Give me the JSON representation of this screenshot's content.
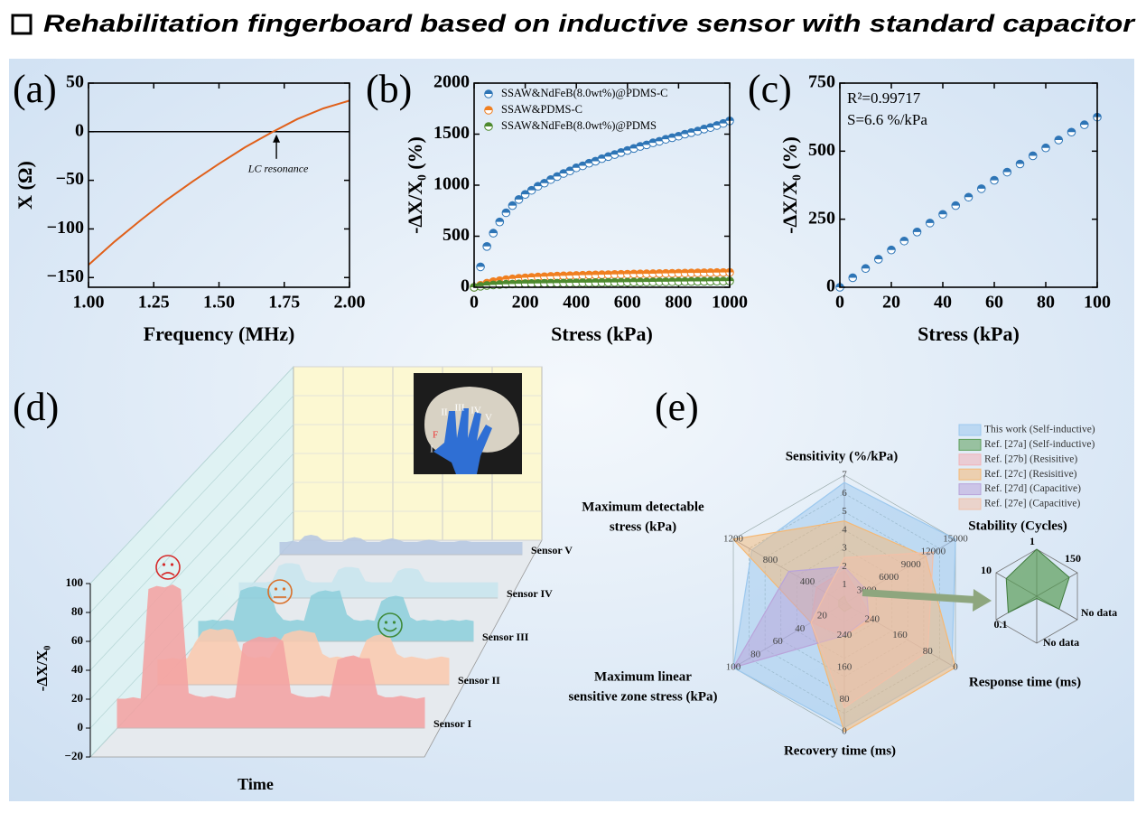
{
  "header": {
    "title": "Rehabilitation fingerboard based on inductive sensor with standard capacitor"
  },
  "chart_data": [
    {
      "type": "line",
      "panel": "(a)",
      "xlabel": "Frequency (MHz)",
      "ylabel": "X (Ω)",
      "x": [
        1.0,
        1.1,
        1.2,
        1.3,
        1.4,
        1.5,
        1.6,
        1.7,
        1.8,
        1.9,
        2.0
      ],
      "series": [
        {
          "color": "#e0601a",
          "values": [
            -137,
            -113,
            -91,
            -70,
            -51,
            -33,
            -16,
            -1,
            13,
            24,
            32
          ]
        }
      ],
      "xlim": [
        1,
        2
      ],
      "ylim": [
        -160,
        50
      ],
      "xticks": [
        {
          "value": 1,
          "label": "1.00"
        },
        {
          "value": 1.25,
          "label": "1.25"
        },
        {
          "value": 1.5,
          "label": "1.50"
        },
        {
          "value": 1.75,
          "label": "1.75"
        },
        {
          "value": 2,
          "label": "2.00"
        }
      ],
      "yticks": [
        {
          "value": -150,
          "label": "−150"
        },
        {
          "value": -100,
          "label": "−100"
        },
        {
          "value": -50,
          "label": "−50"
        },
        0,
        50
      ],
      "hline": 0,
      "annotation": {
        "text": "LC resonance",
        "x": 1.72
      }
    },
    {
      "type": "scatter",
      "panel": "(b)",
      "xlabel": "Stress (kPa)",
      "ylabel": "-ΔX/X₀ (%)",
      "x": [
        0,
        25,
        50,
        75,
        100,
        125,
        150,
        175,
        200,
        225,
        250,
        275,
        300,
        325,
        350,
        375,
        400,
        425,
        450,
        475,
        500,
        525,
        550,
        575,
        600,
        625,
        650,
        675,
        700,
        725,
        750,
        775,
        800,
        825,
        850,
        875,
        900,
        925,
        950,
        975,
        1000
      ],
      "series": [
        {
          "name": "SSAW&NdFeB(8.0wt%)@PDMS-C",
          "color": "#2e75b6",
          "values": [
            0,
            200,
            400,
            530,
            640,
            730,
            800,
            860,
            910,
            950,
            990,
            1020,
            1055,
            1085,
            1115,
            1140,
            1170,
            1190,
            1215,
            1235,
            1260,
            1280,
            1300,
            1320,
            1340,
            1360,
            1380,
            1395,
            1415,
            1430,
            1450,
            1465,
            1480,
            1500,
            1515,
            1530,
            1550,
            1565,
            1585,
            1605,
            1630
          ]
        },
        {
          "name": "SSAW&PDMS-C",
          "color": "#f07f20",
          "values": [
            0,
            20,
            40,
            55,
            65,
            75,
            82,
            88,
            93,
            97,
            101,
            104,
            107,
            110,
            112,
            114,
            116,
            118,
            120,
            121,
            123,
            124,
            126,
            127,
            128,
            130,
            131,
            132,
            133,
            135,
            136,
            137,
            138,
            139,
            140,
            141,
            142,
            143,
            144,
            145,
            146
          ]
        },
        {
          "name": "SSAW&NdFeB(8.0wt%)@PDMS",
          "color": "#4e8a2e",
          "values": [
            0,
            10,
            18,
            23,
            27,
            30,
            32,
            34,
            36,
            37,
            38,
            39,
            40,
            41,
            42,
            43,
            44,
            45,
            45,
            46,
            47,
            48,
            48,
            49,
            50,
            51,
            51,
            52,
            53,
            54,
            54,
            55,
            56,
            56,
            57,
            58,
            58,
            59,
            60,
            60,
            61
          ]
        }
      ],
      "xlim": [
        0,
        1000
      ],
      "ylim": [
        0,
        2000
      ],
      "xticks": [
        0,
        200,
        400,
        600,
        800,
        1000
      ],
      "yticks": [
        0,
        500,
        1000,
        1500,
        2000
      ]
    },
    {
      "type": "scatter",
      "panel": "(c)",
      "xlabel": "Stress (kPa)",
      "ylabel": "-ΔX/X₀ (%)",
      "x": [
        0,
        5,
        10,
        15,
        20,
        25,
        30,
        35,
        40,
        45,
        50,
        55,
        60,
        65,
        70,
        75,
        80,
        85,
        90,
        95,
        100
      ],
      "series": [
        {
          "color": "#2e75b6",
          "values": [
            0,
            35,
            69,
            103,
            137,
            170,
            203,
            236,
            268,
            300,
            331,
            362,
            393,
            423,
            453,
            483,
            512,
            541,
            570,
            597,
            625
          ]
        }
      ],
      "xlim": [
        0,
        100
      ],
      "ylim": [
        0,
        750
      ],
      "xticks": [
        0,
        20,
        40,
        60,
        80,
        100
      ],
      "yticks": [
        0,
        250,
        500,
        750
      ],
      "annotations": [
        "R²=0.99717",
        "S=6.6 %/kPa"
      ]
    },
    {
      "type": "waterfall3d",
      "panel": "(d)",
      "xlabel": "Time",
      "ylabel": "-ΔX/X₀",
      "ylim": [
        -20,
        100
      ],
      "yticks": [
        {
          "value": -20,
          "label": "−20"
        },
        0,
        20,
        40,
        60,
        80,
        100
      ],
      "series": [
        {
          "name": "Sensor I",
          "color": "#f4a3a3",
          "values": [
            20,
            20,
            21,
            20,
            96,
            98,
            97,
            99,
            96,
            24,
            22,
            21,
            22,
            21,
            20,
            21,
            58,
            61,
            63,
            62,
            63,
            60,
            24,
            22,
            21,
            21,
            22,
            21,
            47,
            49,
            50,
            48,
            48,
            23,
            21,
            21,
            22,
            21,
            20,
            21
          ]
        },
        {
          "name": "Sensor II",
          "color": "#fbcbb0",
          "values": [
            18,
            18,
            19,
            18,
            19,
            30,
            38,
            40,
            39,
            40,
            39,
            25,
            20,
            19,
            20,
            19,
            28,
            36,
            38,
            39,
            38,
            37,
            22,
            19,
            20,
            19,
            20,
            19,
            32,
            35,
            36,
            35,
            22,
            19,
            20,
            19,
            18,
            19,
            20,
            19
          ]
        },
        {
          "name": "Sensor III",
          "color": "#8fd0dc",
          "values": [
            15,
            15,
            16,
            15,
            16,
            15,
            38,
            40,
            41,
            40,
            39,
            22,
            16,
            15,
            16,
            15,
            34,
            37,
            38,
            37,
            38,
            20,
            16,
            15,
            16,
            15,
            30,
            33,
            34,
            33,
            18,
            15,
            16,
            15,
            16,
            15,
            16,
            15,
            16,
            15
          ]
        },
        {
          "name": "Sensor IV",
          "color": "#c9e6ee",
          "values": [
            12,
            12,
            12,
            12,
            12,
            13,
            25,
            27,
            27,
            26,
            14,
            12,
            12,
            12,
            12,
            22,
            24,
            24,
            23,
            13,
            12,
            12,
            12,
            12,
            21,
            23,
            23,
            22,
            13,
            12,
            12,
            12,
            12,
            12,
            12,
            12,
            12,
            12,
            12,
            12
          ]
        },
        {
          "name": "Sensor V",
          "color": "#b7c8e2",
          "values": [
            10,
            10,
            11,
            10,
            15,
            16,
            15,
            11,
            10,
            10,
            10,
            13,
            14,
            13,
            10,
            10,
            10,
            12,
            13,
            12,
            10,
            10,
            10,
            11,
            12,
            11,
            10,
            10,
            10,
            11,
            11,
            10,
            10,
            10,
            10,
            10,
            10,
            10,
            10,
            10
          ]
        }
      ],
      "inset_labels": [
        "II",
        "III",
        "IV",
        "V",
        "F",
        "I"
      ]
    },
    {
      "type": "radar",
      "panel": "(e)",
      "axes": [
        {
          "label": [
            "Sensitivity (%/kPa)"
          ],
          "lim": [
            0,
            7
          ],
          "ticks": [
            1,
            2,
            3,
            4,
            5,
            6,
            7
          ]
        },
        {
          "label": [
            "Stability (Cycles)"
          ],
          "lim": [
            0,
            15000
          ],
          "ticks": [
            3000,
            6000,
            9000,
            12000,
            15000
          ]
        },
        {
          "label": [
            "Response time (ms)"
          ],
          "lim": [
            320,
            0
          ],
          "ticks": [
            240,
            160,
            80,
            0
          ]
        },
        {
          "label": [
            "Recovery time (ms)"
          ],
          "lim": [
            320,
            0
          ],
          "ticks": [
            240,
            160,
            80,
            0
          ]
        },
        {
          "label": [
            "Maximum linear",
            "sensitive zone stress (kPa)"
          ],
          "lim": [
            0,
            100
          ],
          "ticks": [
            20,
            40,
            60,
            80,
            100
          ]
        },
        {
          "label": [
            "Maximum detectable",
            "stress (kPa)"
          ],
          "lim": [
            0,
            1200
          ],
          "ticks": [
            400,
            800,
            1200
          ]
        }
      ],
      "series": [
        {
          "name": "This work (Self-inductive)",
          "color": "#9cc8ee",
          "values": [
            6.6,
            15000,
            10,
            10,
            100,
            1000
          ]
        },
        {
          "name": "Ref. [27a] (Self-inductive)",
          "color": "#5d9e5a",
          "values": [
            0.4,
            300,
            300,
            300,
            5,
            60
          ]
        },
        {
          "name": "Ref. [27b] (Resisitive)",
          "color": "#f2b3b8",
          "values": [
            1.8,
            2000,
            240,
            240,
            30,
            300
          ]
        },
        {
          "name": "Ref. [27c] (Resisitive)",
          "color": "#f5b874",
          "values": [
            4.5,
            11000,
            0,
            0,
            30,
            1200
          ]
        },
        {
          "name": "Ref. [27d] (Capacitive)",
          "color": "#b9a4da",
          "values": [
            2,
            3000,
            250,
            240,
            100,
            600
          ]
        },
        {
          "name": "Ref. [27e] (Capacitive)",
          "color": "#f2c0a8",
          "values": [
            2.5,
            12000,
            80,
            60,
            30,
            200
          ]
        }
      ],
      "inset_labels": [
        "1",
        "150",
        "No data",
        "No data",
        "0.1",
        "10"
      ]
    }
  ]
}
